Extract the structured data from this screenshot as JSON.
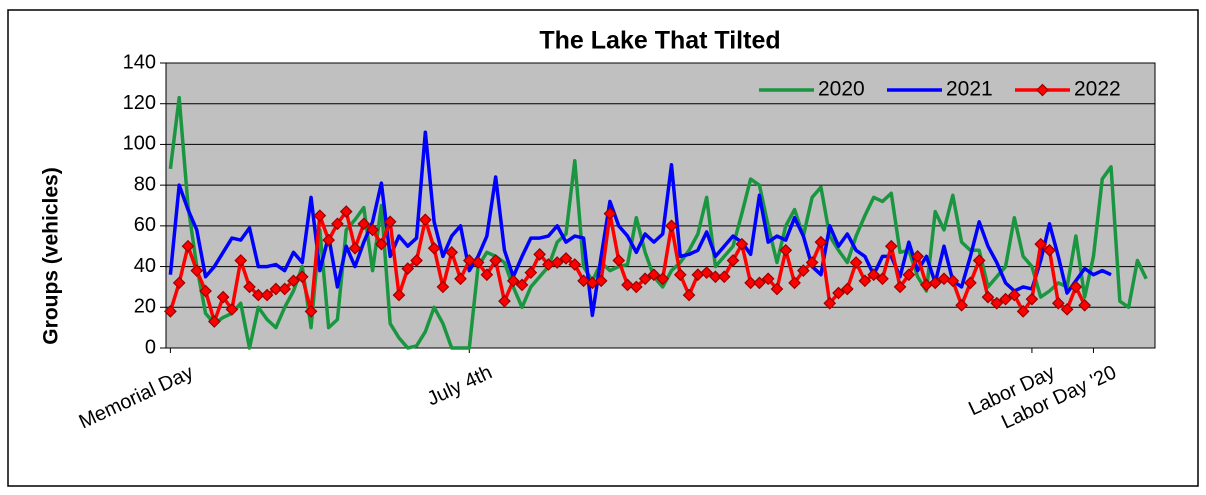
{
  "chart_data": {
    "type": "line",
    "title": "The Lake That Tilted",
    "y_label": "Groups (vehicles)",
    "x": [
      0,
      1,
      2,
      3,
      4,
      5,
      6,
      7,
      8,
      9,
      10,
      11,
      12,
      13,
      14,
      15,
      16,
      17,
      18,
      19,
      20,
      21,
      22,
      23,
      24,
      25,
      26,
      27,
      28,
      29,
      30,
      31,
      32,
      33,
      34,
      35,
      36,
      37,
      38,
      39,
      40,
      41,
      42,
      43,
      44,
      45,
      46,
      47,
      48,
      49,
      50,
      51,
      52,
      53,
      54,
      55,
      56,
      57,
      58,
      59,
      60,
      61,
      62,
      63,
      64,
      65,
      66,
      67,
      68,
      69,
      70,
      71,
      72,
      73,
      74,
      75,
      76,
      77,
      78,
      79,
      80,
      81,
      82,
      83,
      84,
      85,
      86,
      87,
      88,
      89,
      90,
      91,
      92,
      93,
      94,
      95,
      96,
      97,
      98,
      99,
      100,
      101,
      102,
      103,
      104,
      105,
      106,
      107,
      108,
      109,
      110,
      111
    ],
    "xlim": [
      -0.5,
      112
    ],
    "xticks": [
      {
        "value": 0,
        "label": "Memorial Day"
      },
      {
        "value": 34,
        "label": "July 4th"
      },
      {
        "value": 98,
        "label": "Labor Day"
      },
      {
        "value": 105,
        "label": "Labor Day '20"
      }
    ],
    "ylim": [
      0,
      140
    ],
    "yticks": [
      0,
      20,
      40,
      60,
      80,
      100,
      120,
      140
    ],
    "grid": true,
    "legend": "upper right",
    "background": "#c0c0c0",
    "series": [
      {
        "name": "2020",
        "color": "#1a9641",
        "marker": false,
        "values": [
          88,
          123,
          70,
          40,
          17,
          12,
          15,
          17,
          22,
          0,
          20,
          14,
          10,
          20,
          28,
          40,
          10,
          58,
          10,
          14,
          58,
          63,
          69,
          38,
          70,
          12,
          5,
          0,
          1,
          8,
          20,
          12,
          0,
          0,
          0,
          40,
          47,
          45,
          42,
          30,
          20,
          30,
          35,
          40,
          52,
          56,
          92,
          40,
          33,
          42,
          38,
          40,
          41,
          64,
          47,
          35,
          30,
          38,
          42,
          48,
          56,
          74,
          40,
          45,
          50,
          66,
          83,
          80,
          60,
          42,
          60,
          68,
          55,
          74,
          79,
          55,
          48,
          42,
          55,
          65,
          74,
          72,
          76,
          47,
          48,
          35,
          28,
          67,
          58,
          75,
          52,
          48,
          48,
          30,
          35,
          40,
          64,
          45,
          40,
          25,
          28,
          32,
          30,
          55,
          25,
          45,
          83,
          89,
          23,
          20,
          43,
          34
        ]
      },
      {
        "name": "2021",
        "color": "#0000ff",
        "marker": false,
        "values": [
          36,
          80,
          68,
          58,
          35,
          40,
          47,
          54,
          53,
          59,
          40,
          40,
          41,
          38,
          47,
          42,
          74,
          38,
          55,
          30,
          50,
          40,
          52,
          62,
          81,
          45,
          55,
          50,
          54,
          106,
          62,
          45,
          55,
          60,
          38,
          45,
          55,
          84,
          48,
          35,
          45,
          54,
          54,
          55,
          60,
          52,
          55,
          54,
          16,
          45,
          72,
          60,
          55,
          47,
          56,
          52,
          56,
          90,
          45,
          46,
          48,
          57,
          45,
          50,
          55,
          52,
          46,
          75,
          52,
          55,
          53,
          64,
          55,
          40,
          36,
          60,
          50,
          56,
          48,
          45,
          36,
          45,
          45,
          35,
          52,
          38,
          45,
          32,
          50,
          33,
          30,
          45,
          62,
          50,
          42,
          32,
          28,
          30,
          29,
          43,
          61,
          45,
          27,
          33,
          39,
          36,
          38,
          36,
          null,
          null,
          null,
          null
        ]
      },
      {
        "name": "2022",
        "color": "#ff0000",
        "marker": true,
        "values": [
          18,
          32,
          50,
          38,
          28,
          13,
          25,
          19,
          43,
          30,
          26,
          26,
          29,
          29,
          33,
          35,
          18,
          65,
          53,
          61,
          67,
          49,
          61,
          58,
          51,
          62,
          26,
          39,
          43,
          63,
          49,
          30,
          47,
          34,
          43,
          42,
          36,
          43,
          23,
          33,
          31,
          37,
          46,
          41,
          42,
          44,
          41,
          33,
          32,
          33,
          66,
          43,
          31,
          30,
          34,
          36,
          34,
          60,
          36,
          26,
          36,
          37,
          35,
          35,
          43,
          51,
          32,
          32,
          34,
          29,
          48,
          32,
          38,
          42,
          52,
          22,
          27,
          29,
          42,
          33,
          36,
          34,
          50,
          30,
          36,
          45,
          31,
          32,
          34,
          33,
          21,
          32,
          43,
          25,
          22,
          24,
          26,
          18,
          24,
          51,
          48,
          22,
          19,
          30,
          21,
          null,
          null,
          null,
          null,
          null,
          null,
          null
        ]
      }
    ]
  }
}
